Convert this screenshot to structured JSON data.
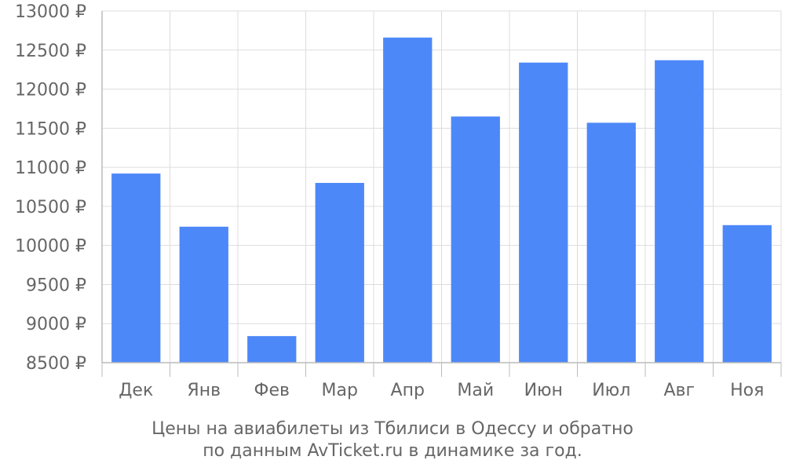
{
  "chart_data": {
    "type": "bar",
    "categories": [
      "Дек",
      "Янв",
      "Фев",
      "Мар",
      "Апр",
      "Май",
      "Июн",
      "Июл",
      "Авг",
      "Ноя"
    ],
    "values": [
      10920,
      10240,
      8840,
      10800,
      12660,
      11650,
      12340,
      11570,
      12370,
      10260
    ],
    "y_ticks": [
      "8500 ₽",
      "9000 ₽",
      "9500 ₽",
      "10000 ₽",
      "10500 ₽",
      "11000 ₽",
      "11500 ₽",
      "12000 ₽",
      "12500 ₽",
      "13000 ₽"
    ],
    "ylim": [
      8500,
      13000
    ],
    "grid": true,
    "bar_color": "#4d88f9",
    "grid_color": "#dddddd",
    "caption_line1": "Цены на авиабилеты из Тбилиси в Одессу и обратно",
    "caption_line2": "по данным AvTicket.ru в динамике за год."
  }
}
